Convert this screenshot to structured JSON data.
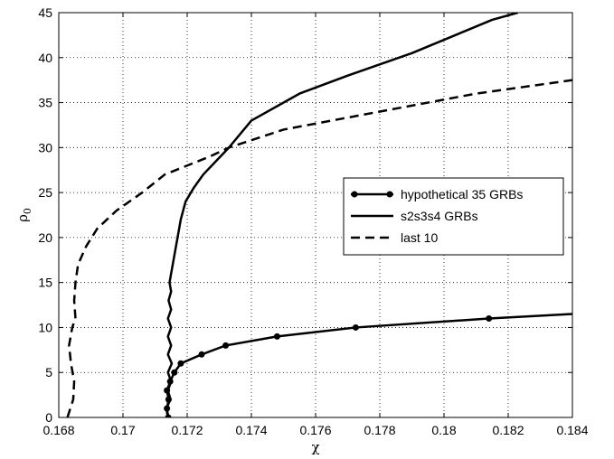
{
  "chart_data": {
    "type": "line",
    "xlabel": "χ",
    "ylabel": "ρ",
    "ylabel_sub": "0",
    "xlim": [
      0.168,
      0.184
    ],
    "ylim": [
      0,
      45
    ],
    "xticks": [
      0.168,
      0.17,
      0.172,
      0.174,
      0.176,
      0.178,
      0.18,
      0.182,
      0.184
    ],
    "xtick_labels": [
      "0.168",
      "0.17",
      "0.172",
      "0.174",
      "0.176",
      "0.178",
      "0.18",
      "0.182",
      "0.184"
    ],
    "yticks": [
      0,
      5,
      10,
      15,
      20,
      25,
      30,
      35,
      40,
      45
    ],
    "ytick_labels": [
      "0",
      "5",
      "10",
      "15",
      "20",
      "25",
      "30",
      "35",
      "40",
      "45"
    ],
    "grid": true,
    "legend_position": "center-right",
    "series": [
      {
        "name": "hypothetical 35 GRBs",
        "style": "solid-markers",
        "color": "#000000",
        "points": [
          [
            0.17141,
            0
          ],
          [
            0.17137,
            1
          ],
          [
            0.17142,
            2
          ],
          [
            0.17137,
            3
          ],
          [
            0.17147,
            4
          ],
          [
            0.1716,
            5
          ],
          [
            0.1718,
            6
          ],
          [
            0.17245,
            7
          ],
          [
            0.1732,
            8
          ],
          [
            0.1748,
            9
          ],
          [
            0.17725,
            10
          ],
          [
            0.1814,
            11
          ],
          [
            0.184,
            11.5
          ]
        ],
        "markers": [
          [
            0.17141,
            0
          ],
          [
            0.17137,
            1
          ],
          [
            0.17142,
            2
          ],
          [
            0.17137,
            3
          ],
          [
            0.17147,
            4
          ],
          [
            0.1716,
            5
          ],
          [
            0.1718,
            6
          ],
          [
            0.17245,
            7
          ],
          [
            0.1732,
            8
          ],
          [
            0.1748,
            9
          ],
          [
            0.17725,
            10
          ],
          [
            0.1814,
            11
          ]
        ]
      },
      {
        "name": "s2s3s4 GRBs",
        "style": "solid",
        "color": "#000000",
        "points": [
          [
            0.1714,
            0
          ],
          [
            0.17135,
            1
          ],
          [
            0.17148,
            2
          ],
          [
            0.1714,
            3
          ],
          [
            0.1715,
            4
          ],
          [
            0.1714,
            5
          ],
          [
            0.17152,
            6
          ],
          [
            0.1714,
            7
          ],
          [
            0.1715,
            8
          ],
          [
            0.1714,
            9
          ],
          [
            0.1715,
            10
          ],
          [
            0.1714,
            11
          ],
          [
            0.1715,
            12
          ],
          [
            0.17142,
            13
          ],
          [
            0.1715,
            14
          ],
          [
            0.17145,
            15
          ],
          [
            0.1715,
            16
          ],
          [
            0.17155,
            17
          ],
          [
            0.1716,
            18
          ],
          [
            0.1717,
            20
          ],
          [
            0.1718,
            22
          ],
          [
            0.17195,
            24
          ],
          [
            0.1722,
            25.5
          ],
          [
            0.1725,
            27
          ],
          [
            0.1729,
            28.5
          ],
          [
            0.1733,
            30
          ],
          [
            0.174,
            33
          ],
          [
            0.1755,
            36
          ],
          [
            0.177,
            38
          ],
          [
            0.179,
            40.5
          ],
          [
            0.1815,
            44.2
          ],
          [
            0.1823,
            45
          ]
        ]
      },
      {
        "name": "last 10",
        "style": "dashed",
        "color": "#000000",
        "points": [
          [
            0.16827,
            0
          ],
          [
            0.16845,
            2
          ],
          [
            0.16848,
            4
          ],
          [
            0.16838,
            6
          ],
          [
            0.16832,
            8
          ],
          [
            0.16842,
            10
          ],
          [
            0.16852,
            11
          ],
          [
            0.16848,
            13
          ],
          [
            0.16852,
            15
          ],
          [
            0.1686,
            17
          ],
          [
            0.16885,
            19
          ],
          [
            0.1692,
            21
          ],
          [
            0.1698,
            23
          ],
          [
            0.1706,
            25
          ],
          [
            0.1713,
            27
          ],
          [
            0.1727,
            29
          ],
          [
            0.1733,
            30
          ],
          [
            0.175,
            32
          ],
          [
            0.178,
            34
          ],
          [
            0.181,
            36
          ],
          [
            0.184,
            37.5
          ]
        ]
      }
    ]
  }
}
